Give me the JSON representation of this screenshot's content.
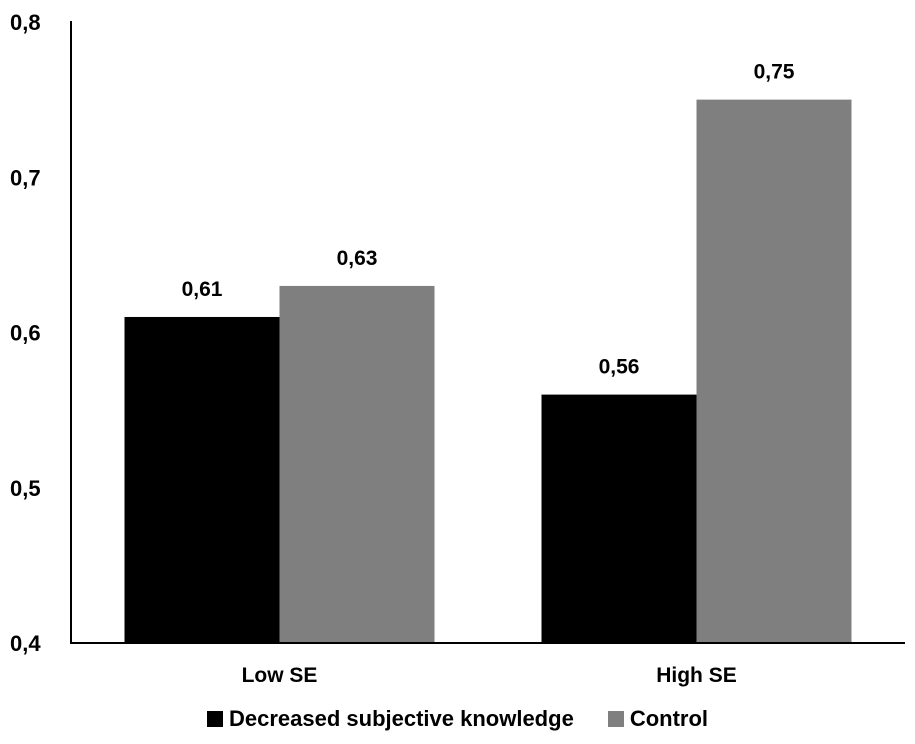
{
  "chart_data": {
    "type": "bar",
    "categories": [
      "Low SE",
      "High SE"
    ],
    "series": [
      {
        "name": "Decreased subjective knowledge",
        "values": [
          0.61,
          0.56
        ],
        "labels": [
          "0,61",
          "0,56"
        ],
        "color": "#000000"
      },
      {
        "name": "Control",
        "values": [
          0.63,
          0.75
        ],
        "labels": [
          "0,63",
          "0,75"
        ],
        "color": "#7f7f7f"
      }
    ],
    "ylim": [
      0.4,
      0.8
    ],
    "yticks": [
      0.4,
      0.5,
      0.6,
      0.7,
      0.8
    ],
    "ytick_labels": [
      "0,4",
      "0,5",
      "0,6",
      "0,7",
      "0,8"
    ],
    "title": "",
    "xlabel": "",
    "ylabel": "",
    "grid": false,
    "legend_position": "bottom"
  }
}
